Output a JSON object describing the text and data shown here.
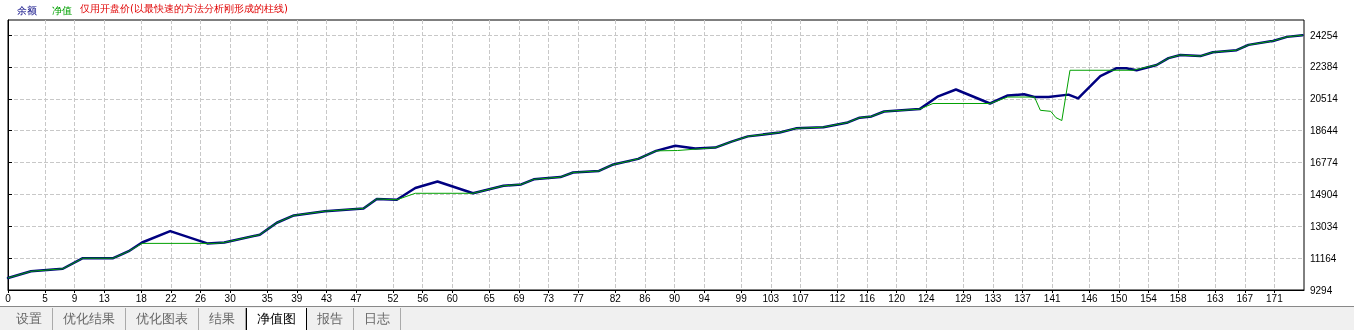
{
  "chart_data": {
    "type": "line",
    "annotations": [
      "仅用开盘价(以最快速的方法分析刚形成的柱线)",
      "设置",
      "优化结果",
      "优化图表",
      "结果",
      "净值图",
      "报告",
      "日志"
    ],
    "xlim": [
      0,
      175
    ],
    "xticks": [
      0,
      5,
      9,
      13,
      18,
      22,
      26,
      30,
      35,
      39,
      43,
      47,
      52,
      56,
      60,
      65,
      69,
      73,
      77,
      82,
      86,
      90,
      94,
      99,
      103,
      107,
      112,
      116,
      120,
      124,
      129,
      133,
      137,
      141,
      146,
      150,
      154,
      158,
      163,
      167,
      171
    ],
    "ylim": [
      9294,
      25140
    ],
    "yticks": [
      9294,
      11164,
      13034,
      14904,
      16774,
      18644,
      20514,
      22384,
      24254
    ],
    "grid": true,
    "legend": "top left",
    "marker": "none",
    "line_style": "solid",
    "series": [
      {
        "name": "余额",
        "color": "#000080",
        "x": [
          0,
          3.1,
          7.4,
          10.1,
          14.2,
          16.3,
          18.1,
          21.9,
          26.9,
          29.2,
          34,
          36.3,
          38.6,
          42.8,
          48,
          49.8,
          52.5,
          55,
          58,
          62.8,
          66.9,
          69.3,
          71,
          74.6,
          76.3,
          79.8,
          81.6,
          85.1,
          87.5,
          90.1,
          92.8,
          95.5,
          97.7,
          99.9,
          104.2,
          106.4,
          110.1,
          113.4,
          115,
          116.6,
          118.3,
          123.1,
          125.6,
          128,
          132.6,
          135,
          137.2,
          138.6,
          140.5,
          143.2,
          144.5,
          147.5,
          149.7,
          151,
          152.4,
          155.1,
          156.7,
          158.3,
          161,
          162.7,
          165.9,
          167.5,
          170.8,
          172.7,
          174.8
        ],
        "values": [
          10000,
          10390,
          10540,
          11160,
          11160,
          11570,
          12080,
          12750,
          12030,
          12080,
          12540,
          13240,
          13670,
          13920,
          14080,
          14640,
          14590,
          15280,
          15660,
          14970,
          15410,
          15490,
          15790,
          15920,
          16190,
          16280,
          16640,
          16990,
          17460,
          17760,
          17600,
          17650,
          18000,
          18310,
          18540,
          18780,
          18850,
          19130,
          19410,
          19480,
          19770,
          19910,
          20660,
          21060,
          20240,
          20710,
          20780,
          20620,
          20620,
          20760,
          20540,
          21840,
          22310,
          22310,
          22190,
          22500,
          22900,
          23090,
          23020,
          23250,
          23370,
          23680,
          23910,
          24150,
          24250
        ]
      },
      {
        "name": "净值",
        "color": "#00a000",
        "x": [
          0,
          3.1,
          7.4,
          10.1,
          14.2,
          16.3,
          18.1,
          28,
          29.2,
          34,
          36.3,
          38.6,
          42.8,
          48,
          49.8,
          52.5,
          55,
          62.8,
          66.9,
          69.3,
          71,
          74.6,
          76.3,
          79.8,
          81.6,
          85.1,
          87.5,
          90.4,
          95.5,
          97.7,
          99.9,
          104.2,
          106.4,
          110.1,
          113.4,
          115,
          116.6,
          118.3,
          123.1,
          124.9,
          132.6,
          135,
          138.6,
          139.4,
          140.8,
          141.5,
          142.3,
          143.4,
          151.9,
          155.1,
          156.7,
          158.3,
          161,
          162.7,
          165.9,
          167.5,
          170.8,
          172.7,
          174.8
        ],
        "values": [
          10000,
          10390,
          10540,
          11160,
          11160,
          11570,
          12030,
          12030,
          12080,
          12540,
          13240,
          13670,
          13920,
          14080,
          14640,
          14590,
          14970,
          14970,
          15410,
          15490,
          15790,
          15920,
          16190,
          16280,
          16640,
          16990,
          17460,
          17480,
          17650,
          18000,
          18310,
          18540,
          18780,
          18850,
          19130,
          19410,
          19480,
          19770,
          19910,
          20240,
          20240,
          20620,
          20620,
          19840,
          19780,
          19410,
          19240,
          22190,
          22190,
          22500,
          22900,
          23090,
          23020,
          23250,
          23370,
          23680,
          23910,
          24150,
          24250
        ]
      }
    ]
  }
}
